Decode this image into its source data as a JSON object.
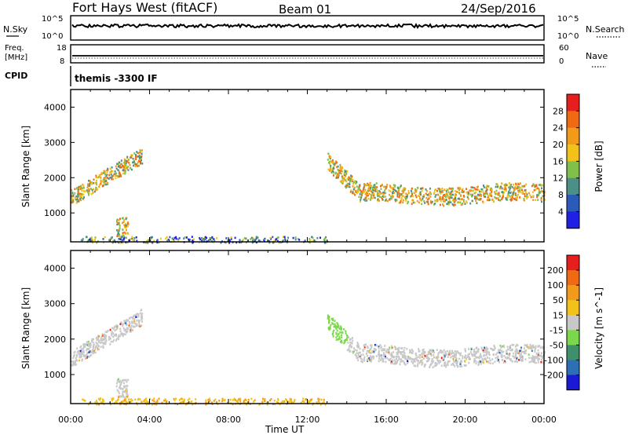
{
  "header": {
    "station": "Fort Hays West (fitACF)",
    "beam": "Beam 01",
    "date": "24/Sep/2016"
  },
  "top_strip": {
    "nsky_label": "N.Sky",
    "nsky_ticks": [
      "10^5",
      "10^0"
    ],
    "nsearch_label": "N.Search",
    "nsearch_ticks": [
      "10^5",
      "10^0"
    ],
    "freq_label_1": "Freq.",
    "freq_label_2": "[MHz]",
    "freq_ticks": [
      "18",
      "8"
    ],
    "nave_label": "Nave",
    "nave_ticks": [
      "60",
      "0"
    ],
    "cpid_label": "CPID",
    "cpid_value": "themis -3300 IF"
  },
  "axes": {
    "ylabel": "Slant Range [km]",
    "xlabel": "Time UT",
    "y_ticks": [
      "1000",
      "2000",
      "3000",
      "4000"
    ],
    "x_ticks": [
      "00:00",
      "04:00",
      "08:00",
      "12:00",
      "16:00",
      "20:00",
      "00:00"
    ]
  },
  "chart_data": [
    {
      "type": "heatmap",
      "title": "",
      "xlabel": "Time UT",
      "ylabel": "Slant Range [km]",
      "xlim": [
        "00:00",
        "24:00"
      ],
      "ylim": [
        180,
        4500
      ],
      "colorbar_label": "Power [dB]",
      "colorbar_ticks": [
        "4",
        "8",
        "12",
        "16",
        "20",
        "24",
        "28"
      ],
      "colorbar_colors": [
        "#1f1fe6",
        "#2a5bb8",
        "#4b8f87",
        "#7fbf4a",
        "#f2c21a",
        "#f29a1a",
        "#f06a14",
        "#e61e1e"
      ],
      "scatter_regions": [
        {
          "name": "early arc",
          "t_start_h": 0.0,
          "t_end_h": 3.6,
          "r_start_km": 1500,
          "r_end_km": 2700
        },
        {
          "name": "near-range blobs",
          "t_start_h": 2.3,
          "t_end_h": 2.9,
          "r_start_km": 350,
          "r_end_km": 900
        },
        {
          "name": "ground scatter",
          "t_start_h": 0.5,
          "t_end_h": 13.0,
          "r_start_km": 180,
          "r_end_km": 350
        },
        {
          "name": "evening band",
          "t_start_h": 13.0,
          "t_end_h": 24.0,
          "r_start_km": 1300,
          "r_end_km": 2700
        }
      ]
    },
    {
      "type": "heatmap",
      "title": "",
      "xlabel": "Time UT",
      "ylabel": "Slant Range [km]",
      "xlim": [
        "00:00",
        "24:00"
      ],
      "ylim": [
        180,
        4500
      ],
      "colorbar_label": "Velocity [m s^-1]",
      "colorbar_ticks": [
        "200",
        "100",
        "50",
        "15",
        "-15",
        "-50",
        "-100",
        "-200"
      ],
      "colorbar_colors": [
        "#1a1ad6",
        "#2d6fb5",
        "#3f8f6b",
        "#7bd84a",
        "#c8c8c8",
        "#f2c21a",
        "#f29a1a",
        "#f06a14",
        "#e61e1e"
      ],
      "scatter_regions": [
        {
          "name": "early arc",
          "t_start_h": 0.0,
          "t_end_h": 3.6,
          "r_start_km": 1500,
          "r_end_km": 2700
        },
        {
          "name": "near-range blobs",
          "t_start_h": 2.3,
          "t_end_h": 2.9,
          "r_start_km": 350,
          "r_end_km": 900
        },
        {
          "name": "ground scatter",
          "t_start_h": 0.5,
          "t_end_h": 13.0,
          "r_start_km": 180,
          "r_end_km": 350
        },
        {
          "name": "evening band",
          "t_start_h": 13.0,
          "t_end_h": 24.0,
          "r_start_km": 1300,
          "r_end_km": 2700
        }
      ]
    }
  ]
}
